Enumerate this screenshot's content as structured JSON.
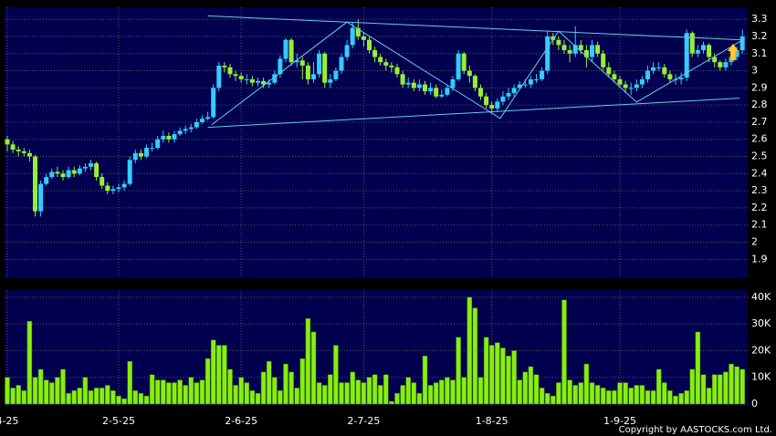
{
  "chart_data": {
    "type": "candlestick",
    "copyright": "Copyright by AASTOCKS.com Ltd.",
    "open": [
      2.6,
      2.57,
      2.54,
      2.53,
      2.52,
      2.5,
      2.18,
      2.34,
      2.38,
      2.41,
      2.4,
      2.38,
      2.42,
      2.4,
      2.43,
      2.44,
      2.46,
      2.38,
      2.33,
      2.3,
      2.31,
      2.32,
      2.34,
      2.48,
      2.52,
      2.5,
      2.55,
      2.55,
      2.6,
      2.62,
      2.6,
      2.63,
      2.65,
      2.66,
      2.67,
      2.7,
      2.72,
      2.73,
      2.9,
      3.03,
      3.02,
      2.98,
      2.97,
      2.95,
      2.95,
      2.93,
      2.94,
      2.92,
      2.93,
      2.98,
      3.07,
      3.18,
      3.05,
      3.06,
      3.03,
      2.95,
      2.98,
      3.1,
      2.93,
      2.95,
      3.0,
      3.08,
      3.15,
      3.25,
      3.2,
      3.18,
      3.12,
      3.08,
      3.05,
      3.03,
      3.02,
      2.98,
      2.92,
      2.93,
      2.9,
      2.92,
      2.88,
      2.9,
      2.85,
      2.86,
      2.9,
      2.95,
      3.1,
      3.0,
      2.97,
      2.9,
      2.85,
      2.8,
      2.78,
      2.82,
      2.85,
      2.87,
      2.9,
      2.92,
      2.92,
      2.95,
      2.95,
      3.0,
      3.2,
      3.18,
      3.15,
      3.12,
      3.1,
      3.15,
      3.12,
      3.08,
      3.15,
      3.1,
      3.02,
      2.98,
      2.95,
      2.92,
      2.9,
      2.9,
      2.92,
      2.95,
      3.0,
      3.02,
      3.02,
      2.98,
      2.95,
      2.95,
      2.96,
      3.22,
      3.1,
      3.12,
      3.15,
      3.08,
      3.05,
      3.02,
      3.05,
      3.08,
      3.12
    ],
    "high": [
      2.62,
      2.59,
      2.56,
      2.55,
      2.54,
      2.51,
      2.36,
      2.4,
      2.43,
      2.44,
      2.42,
      2.44,
      2.44,
      2.45,
      2.46,
      2.48,
      2.47,
      2.4,
      2.35,
      2.33,
      2.34,
      2.36,
      2.5,
      2.54,
      2.54,
      2.57,
      2.58,
      2.62,
      2.65,
      2.64,
      2.65,
      2.67,
      2.68,
      2.69,
      2.72,
      2.74,
      2.76,
      2.92,
      3.05,
      3.05,
      3.04,
      3.0,
      2.99,
      2.98,
      2.97,
      2.96,
      2.96,
      2.95,
      3.0,
      3.09,
      3.19,
      3.19,
      3.1,
      3.08,
      3.05,
      3.05,
      3.12,
      3.11,
      2.98,
      3.02,
      3.1,
      3.18,
      3.28,
      3.3,
      3.22,
      3.2,
      3.14,
      3.1,
      3.07,
      3.05,
      3.04,
      3.0,
      2.96,
      2.95,
      2.95,
      2.94,
      2.93,
      2.92,
      2.89,
      2.92,
      2.97,
      3.12,
      3.11,
      3.03,
      2.98,
      2.92,
      2.87,
      2.82,
      2.84,
      2.88,
      2.9,
      2.92,
      2.94,
      2.95,
      2.97,
      2.98,
      3.02,
      3.23,
      3.22,
      3.2,
      3.18,
      3.15,
      3.26,
      3.18,
      3.15,
      3.18,
      3.17,
      3.12,
      3.05,
      3.0,
      2.97,
      2.94,
      2.93,
      2.95,
      2.97,
      3.03,
      3.05,
      3.05,
      3.04,
      3.0,
      2.98,
      2.99,
      3.24,
      3.23,
      3.15,
      3.17,
      3.16,
      3.1,
      3.06,
      3.07,
      3.1,
      3.14,
      3.24
    ],
    "low": [
      2.53,
      2.52,
      2.5,
      2.5,
      2.47,
      2.15,
      2.15,
      2.33,
      2.37,
      2.38,
      2.36,
      2.37,
      2.38,
      2.39,
      2.41,
      2.42,
      2.36,
      2.31,
      2.28,
      2.28,
      2.29,
      2.3,
      2.33,
      2.46,
      2.48,
      2.49,
      2.53,
      2.54,
      2.58,
      2.58,
      2.58,
      2.62,
      2.63,
      2.64,
      2.66,
      2.69,
      2.71,
      2.72,
      2.88,
      2.99,
      2.96,
      2.94,
      2.93,
      2.92,
      2.91,
      2.91,
      2.9,
      2.9,
      2.92,
      2.96,
      3.05,
      3.03,
      3.02,
      2.95,
      2.92,
      2.93,
      2.96,
      2.9,
      2.9,
      2.94,
      2.98,
      3.06,
      3.13,
      3.18,
      3.14,
      3.1,
      3.05,
      3.03,
      3.0,
      2.99,
      2.96,
      2.9,
      2.9,
      2.88,
      2.88,
      2.86,
      2.86,
      2.84,
      2.84,
      2.85,
      2.88,
      2.94,
      2.98,
      2.93,
      2.88,
      2.83,
      2.78,
      2.75,
      2.76,
      2.8,
      2.83,
      2.85,
      2.89,
      2.9,
      2.9,
      2.93,
      2.94,
      2.98,
      3.15,
      3.12,
      3.1,
      3.05,
      3.08,
      3.1,
      3.02,
      3.05,
      3.08,
      3.0,
      2.96,
      2.93,
      2.9,
      2.87,
      2.86,
      2.88,
      2.9,
      2.93,
      2.98,
      3.0,
      2.96,
      2.93,
      2.92,
      2.92,
      2.94,
      3.08,
      3.08,
      3.1,
      3.05,
      3.02,
      3.0,
      3.0,
      3.03,
      3.06,
      3.1
    ],
    "close": [
      2.57,
      2.54,
      2.53,
      2.52,
      2.5,
      2.18,
      2.34,
      2.38,
      2.41,
      2.4,
      2.38,
      2.42,
      2.4,
      2.43,
      2.44,
      2.46,
      2.38,
      2.33,
      2.3,
      2.31,
      2.32,
      2.34,
      2.48,
      2.52,
      2.5,
      2.55,
      2.55,
      2.6,
      2.62,
      2.6,
      2.63,
      2.65,
      2.66,
      2.67,
      2.7,
      2.72,
      2.73,
      2.9,
      3.03,
      3.02,
      2.98,
      2.97,
      2.95,
      2.95,
      2.93,
      2.94,
      2.92,
      2.93,
      2.98,
      3.07,
      3.18,
      3.05,
      3.06,
      3.03,
      2.95,
      2.98,
      3.1,
      2.93,
      2.95,
      3.0,
      3.08,
      3.15,
      3.25,
      3.2,
      3.18,
      3.12,
      3.08,
      3.05,
      3.03,
      3.02,
      2.98,
      2.92,
      2.93,
      2.9,
      2.92,
      2.88,
      2.9,
      2.85,
      2.86,
      2.9,
      2.95,
      3.1,
      3.0,
      2.97,
      2.9,
      2.85,
      2.8,
      2.78,
      2.82,
      2.85,
      2.87,
      2.9,
      2.92,
      2.92,
      2.95,
      2.95,
      3.0,
      3.2,
      3.18,
      3.15,
      3.12,
      3.1,
      3.15,
      3.12,
      3.08,
      3.15,
      3.1,
      3.02,
      2.98,
      2.95,
      2.92,
      2.9,
      2.9,
      2.92,
      2.95,
      3.0,
      3.02,
      3.02,
      2.98,
      2.95,
      2.95,
      2.96,
      3.22,
      3.1,
      3.12,
      3.15,
      3.08,
      3.05,
      3.02,
      3.05,
      3.08,
      3.12,
      3.2
    ],
    "volume": [
      10000,
      6000,
      7000,
      5000,
      31000,
      10000,
      13000,
      9000,
      8000,
      10000,
      13000,
      4000,
      5000,
      6000,
      10000,
      5000,
      6000,
      6000,
      7000,
      5000,
      3000,
      2000,
      16000,
      5000,
      4000,
      3000,
      11000,
      9000,
      9000,
      8000,
      8000,
      9000,
      7000,
      10000,
      8000,
      9000,
      17000,
      24000,
      22000,
      22000,
      13000,
      7000,
      10000,
      8000,
      5000,
      4000,
      12000,
      16000,
      10000,
      5000,
      15000,
      12000,
      6000,
      17000,
      32000,
      27000,
      8000,
      7000,
      11000,
      22000,
      8000,
      8000,
      12000,
      9000,
      8000,
      10000,
      11000,
      7000,
      11000,
      1000,
      4000,
      7000,
      10000,
      8000,
      4000,
      18000,
      7000,
      8000,
      9000,
      10000,
      9000,
      25000,
      10000,
      40000,
      36000,
      10000,
      25000,
      22000,
      23000,
      21000,
      18000,
      20000,
      9000,
      12000,
      14000,
      11000,
      6000,
      4000,
      3000,
      8000,
      39000,
      9000,
      7000,
      8000,
      15000,
      8000,
      7000,
      6000,
      5000,
      5000,
      8000,
      8000,
      6000,
      7000,
      7000,
      5000,
      5000,
      13000,
      8000,
      5000,
      3000,
      4000,
      5000,
      13000,
      27000,
      11000,
      6000,
      11000,
      11000,
      12000,
      15000,
      14000,
      13000
    ],
    "up_color": "#33ccff",
    "down_color": "#99ee33",
    "volume_color": "#88ee11",
    "trend_color": "#66ccee",
    "ylim": [
      1.79,
      3.37
    ],
    "yticks": [
      1.9,
      2,
      2.1,
      2.2,
      2.3,
      2.4,
      2.5,
      2.6,
      2.7,
      2.8,
      2.9,
      3,
      3.1,
      3.2,
      3.3
    ],
    "volume_lim": [
      -700,
      42700
    ],
    "volume_ticks": [
      0,
      {
        "value": 10000,
        "label": "10K"
      },
      {
        "value": 20000,
        "label": "20K"
      },
      {
        "value": 30000,
        "label": "30K"
      },
      {
        "value": 40000,
        "label": "40K"
      }
    ],
    "xticks": [
      {
        "value": 0,
        "label": "4-25"
      },
      {
        "value": 20,
        "label": "2-5-25"
      },
      {
        "value": 42,
        "label": "2-6-25"
      },
      {
        "value": 64,
        "label": "2-7-25"
      },
      {
        "value": 87,
        "label": "1-8-25"
      },
      {
        "value": 110,
        "label": "1-9-25"
      }
    ],
    "trend_lines": [
      {
        "x": [
          36,
          132
        ],
        "y": [
          3.32,
          3.18
        ]
      },
      {
        "x": [
          36,
          131.5
        ],
        "y": [
          2.67,
          2.84
        ]
      },
      {
        "x": [
          36.7,
          61,
          88.5,
          99,
          113,
          132
        ],
        "y": [
          2.685,
          3.284,
          2.722,
          3.231,
          2.817,
          3.178
        ]
      }
    ],
    "grid": true
  }
}
